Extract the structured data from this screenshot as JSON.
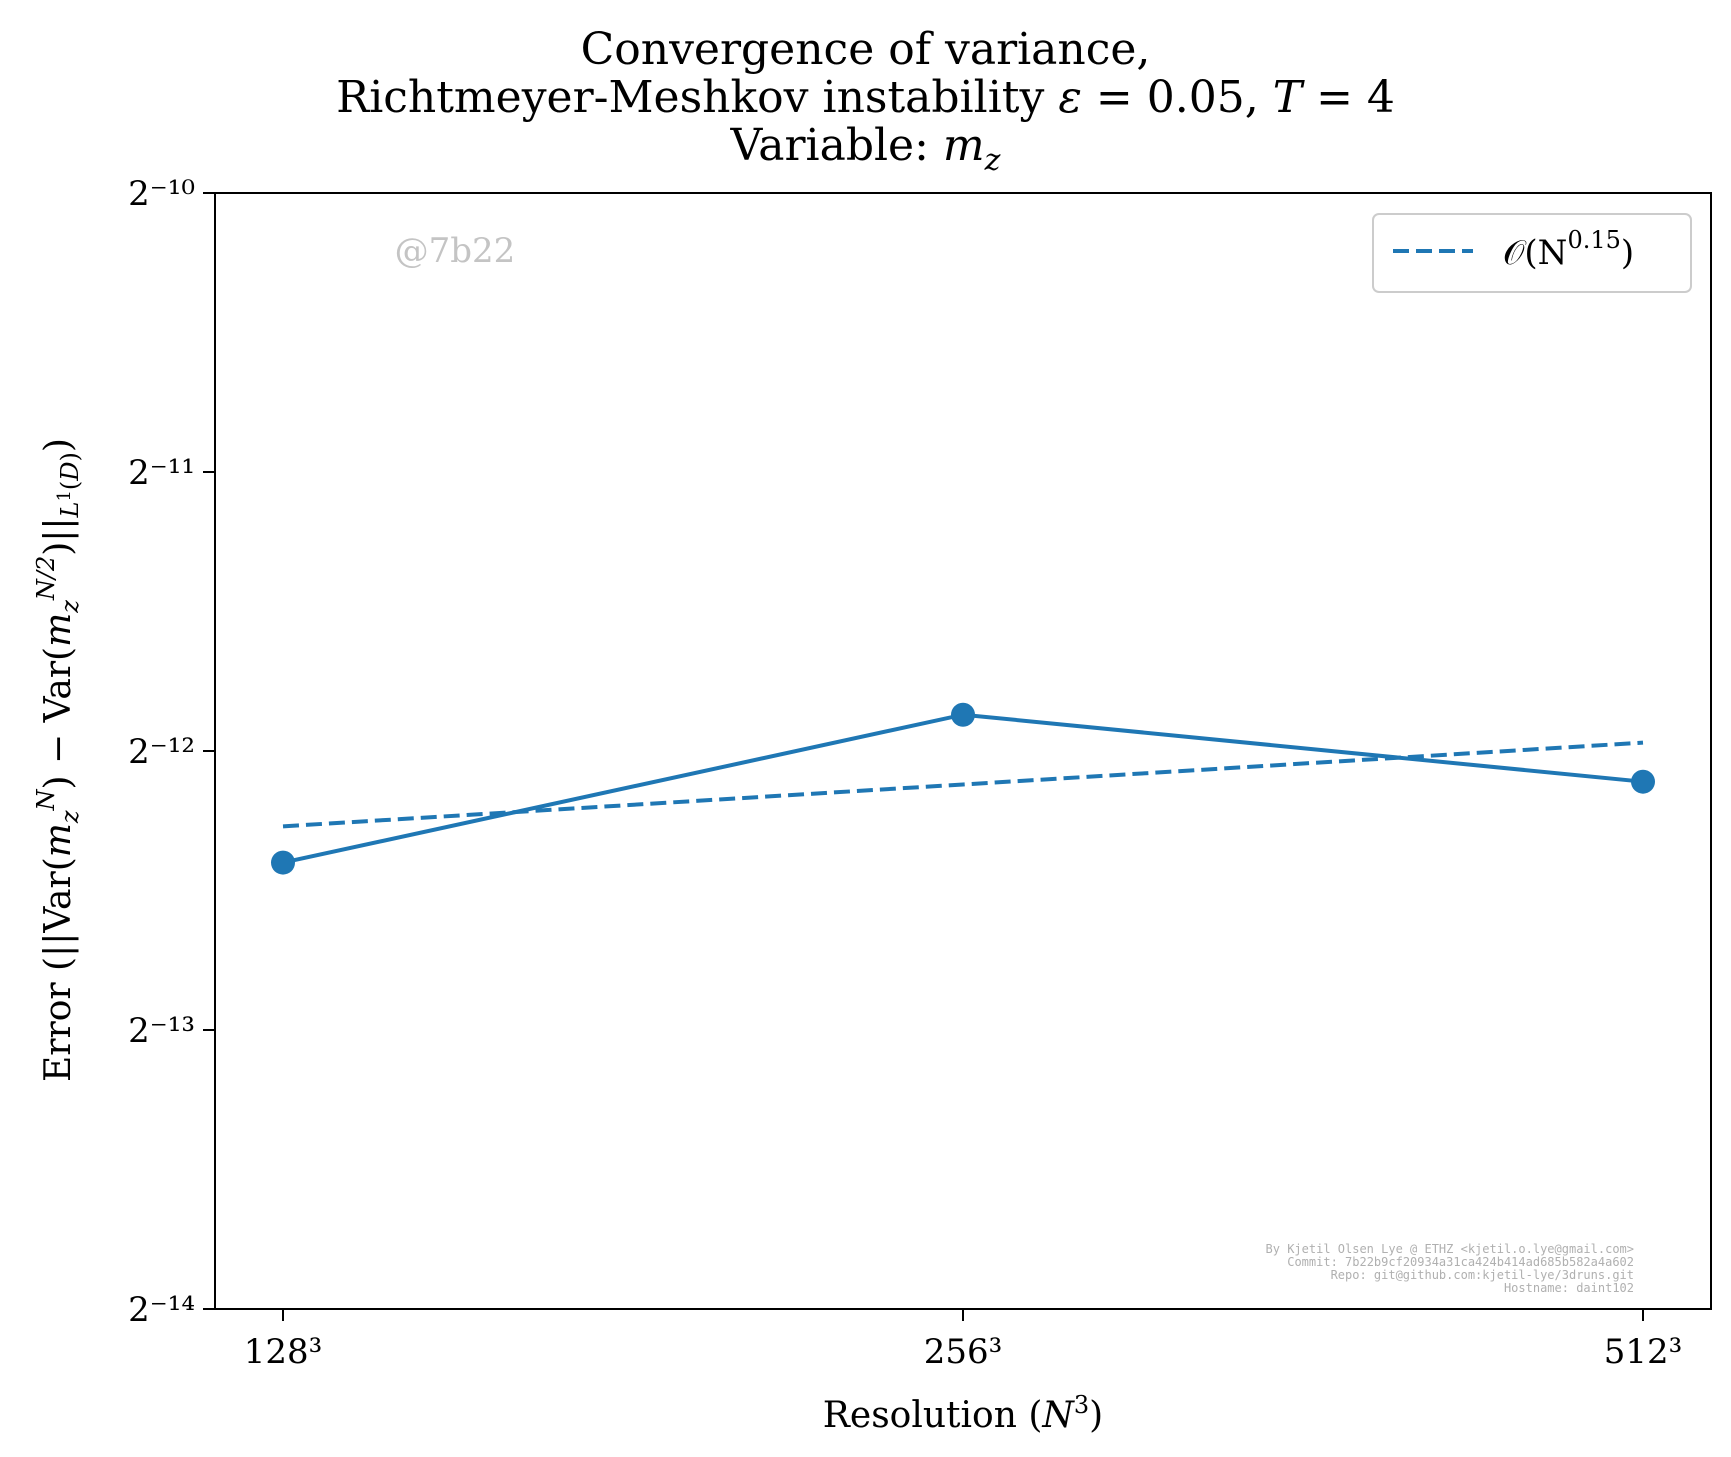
{
  "chart_data": {
    "type": "line",
    "title_lines": [
      "Convergence of variance,",
      "Richtmeyer-Meshkov instability ε = 0.05, T = 4",
      "Variable: m_z"
    ],
    "xlabel": "Resolution (N³)",
    "ylabel": "Error (||Var(m_z^N) − Var(m_z^(N/2))||_L¹(D))",
    "x": [
      128,
      256,
      512
    ],
    "x_tick_labels": [
      "128³",
      "256³",
      "512³"
    ],
    "y_scale": "log2",
    "ylim_exponents": [
      -14,
      -10
    ],
    "y_tick_exponents": [
      -10,
      -11,
      -12,
      -13,
      -14
    ],
    "y_tick_labels": [
      "2⁻¹⁰",
      "2⁻¹¹",
      "2⁻¹²",
      "2⁻¹³",
      "2⁻¹⁴"
    ],
    "series": [
      {
        "style": "solid-marker",
        "color": "#1f77b4",
        "log2_values": [
          -12.4,
          -11.87,
          -12.11
        ]
      },
      {
        "name": "O(N^0.15)",
        "style": "dashed",
        "color": "#1f77b4",
        "log2_values": [
          -12.27,
          -12.12,
          -11.97
        ]
      }
    ],
    "legend": {
      "position": "top-right",
      "label": "𝒪(N",
      "label_sup": "0.15",
      "label_end": ")"
    },
    "grid": false,
    "watermark": "@7b22",
    "credits": [
      "By Kjetil Olsen Lye @ ETHZ <kjetil.o.lye@gmail.com>",
      "Commit: 7b22b9cf20934a31ca424b414ad685b582a4a602",
      "Repo: git@github.com:kjetil-lye/3druns.git",
      "Hostname: daint102"
    ]
  }
}
